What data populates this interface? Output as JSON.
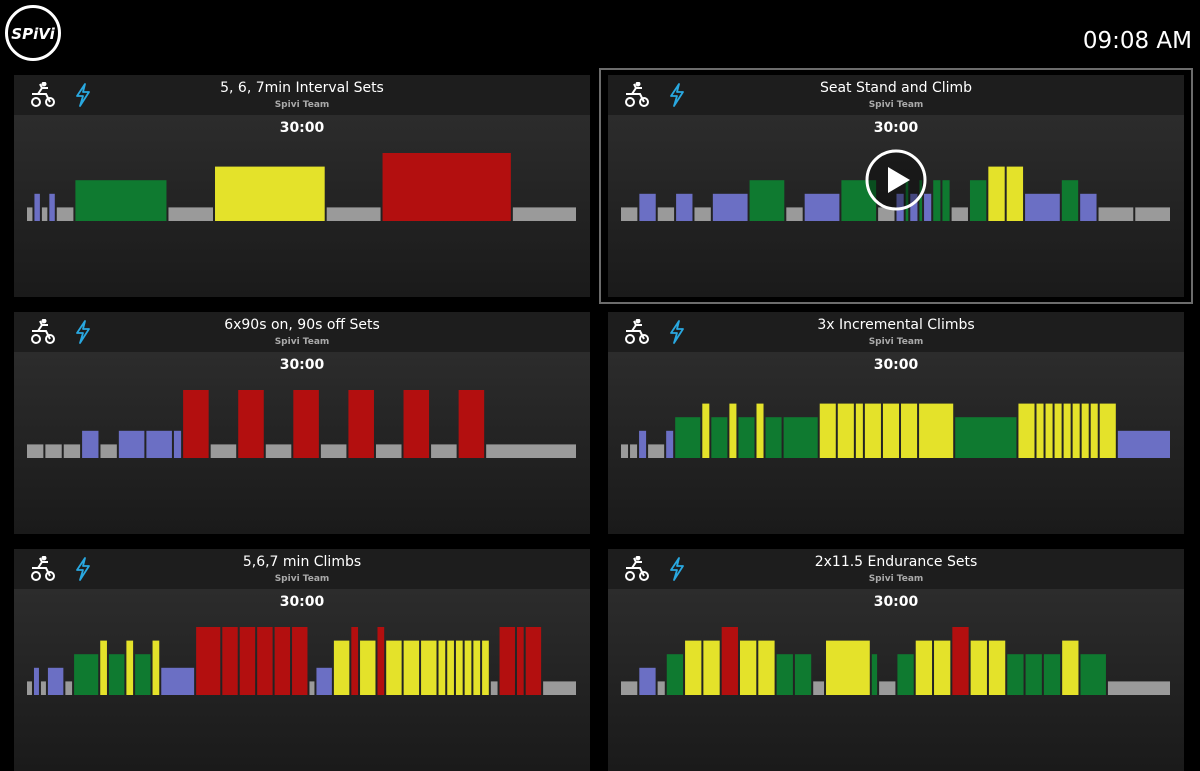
{
  "header": {
    "logo": "SPiVi",
    "time": "09:08 AM"
  },
  "zone_colors": [
    "#9a9a9a",
    "#6b6fc4",
    "#0f7a30",
    "#e4e22a",
    "#b30f0f"
  ],
  "workouts": [
    {
      "title": "5, 6, 7min Interval Sets",
      "author": "Spivi Team",
      "duration": "30:00",
      "selected": false,
      "profile": {
        "zones": [
          1,
          2,
          1,
          2,
          1,
          3,
          1,
          4,
          1,
          5,
          1
        ],
        "minutes": [
          0.4,
          0.4,
          0.4,
          0.4,
          1,
          5,
          2.5,
          6,
          3,
          7,
          3.5
        ]
      }
    },
    {
      "title": "Seat Stand and Climb",
      "author": "Spivi Team",
      "duration": "30:00",
      "selected": true,
      "profile": {
        "zones": [
          1,
          2,
          1,
          2,
          1,
          2,
          3,
          1,
          2,
          3,
          1,
          2,
          3,
          2,
          3,
          2,
          3,
          3,
          1,
          3,
          4,
          4,
          2,
          3,
          2,
          1,
          1
        ],
        "minutes": [
          1,
          1,
          1,
          1,
          1,
          2,
          2,
          1,
          2,
          2,
          1,
          0.5,
          0.25,
          0.5,
          0.25,
          0.5,
          0.5,
          0.5,
          1,
          1,
          1,
          1,
          2,
          1,
          1,
          2,
          2
        ]
      }
    },
    {
      "title": "6x90s on, 90s off Sets",
      "author": "Spivi Team",
      "duration": "30:00",
      "selected": false,
      "profile": {
        "zones": [
          1,
          1,
          1,
          2,
          1,
          2,
          2,
          2,
          5,
          1,
          5,
          1,
          5,
          1,
          5,
          1,
          5,
          1,
          5,
          1
        ],
        "minutes": [
          1,
          1,
          1,
          1,
          1,
          1.5,
          1.5,
          0.5,
          1.5,
          1.5,
          1.5,
          1.5,
          1.5,
          1.5,
          1.5,
          1.5,
          1.5,
          1.5,
          1.5,
          5
        ]
      }
    },
    {
      "title": "3x Incremental Climbs",
      "author": "Spivi Team",
      "duration": "30:00",
      "selected": false,
      "profile": {
        "zones": [
          1,
          1,
          2,
          1,
          2,
          3,
          4,
          3,
          4,
          3,
          4,
          3,
          3,
          4,
          4,
          4,
          4,
          4,
          4,
          4,
          3,
          4,
          4,
          4,
          4,
          4,
          4,
          4,
          4,
          4,
          2
        ],
        "minutes": [
          0.5,
          0.5,
          0.5,
          1,
          0.5,
          1.5,
          0.5,
          1,
          0.5,
          1,
          0.5,
          1,
          2,
          1,
          1,
          0.5,
          1,
          1,
          1,
          2,
          3.5,
          1,
          0.5,
          0.5,
          0.5,
          0.5,
          0.5,
          0.5,
          0.5,
          1,
          3
        ]
      }
    },
    {
      "title": "5,6,7 min Climbs",
      "author": "Spivi Team",
      "duration": "30:00",
      "selected": false,
      "profile": {
        "zones": [
          1,
          2,
          1,
          2,
          1,
          3,
          4,
          3,
          4,
          3,
          4,
          2,
          5,
          5,
          5,
          5,
          5,
          5,
          1,
          2,
          4,
          5,
          4,
          5,
          4,
          4,
          4,
          4,
          4,
          4,
          4,
          4,
          4,
          1,
          5,
          5,
          5,
          1
        ],
        "minutes": [
          0.4,
          0.4,
          0.4,
          1,
          0.5,
          1.5,
          0.5,
          1,
          0.5,
          1,
          0.5,
          2,
          1.5,
          1,
          1,
          1,
          1,
          1,
          0.4,
          1,
          1,
          0.5,
          1,
          0.5,
          1,
          1,
          1,
          0.5,
          0.5,
          0.5,
          0.5,
          0.5,
          0.5,
          0.5,
          1,
          0.5,
          1,
          2
        ]
      }
    },
    {
      "title": "2x11.5 Endurance Sets",
      "author": "Spivi Team",
      "duration": "30:00",
      "selected": false,
      "profile": {
        "zones": [
          1,
          2,
          1,
          3,
          4,
          4,
          5,
          4,
          4,
          3,
          3,
          1,
          4,
          3,
          1,
          3,
          4,
          4,
          5,
          4,
          4,
          3,
          3,
          3,
          4,
          3,
          1
        ],
        "minutes": [
          1,
          1,
          0.5,
          1,
          1,
          1,
          1,
          1,
          1,
          1,
          1,
          0.7,
          2.5,
          0.4,
          1,
          1,
          1,
          1,
          1,
          1,
          1,
          1,
          1,
          1,
          1,
          1.5,
          3.5
        ]
      }
    }
  ]
}
